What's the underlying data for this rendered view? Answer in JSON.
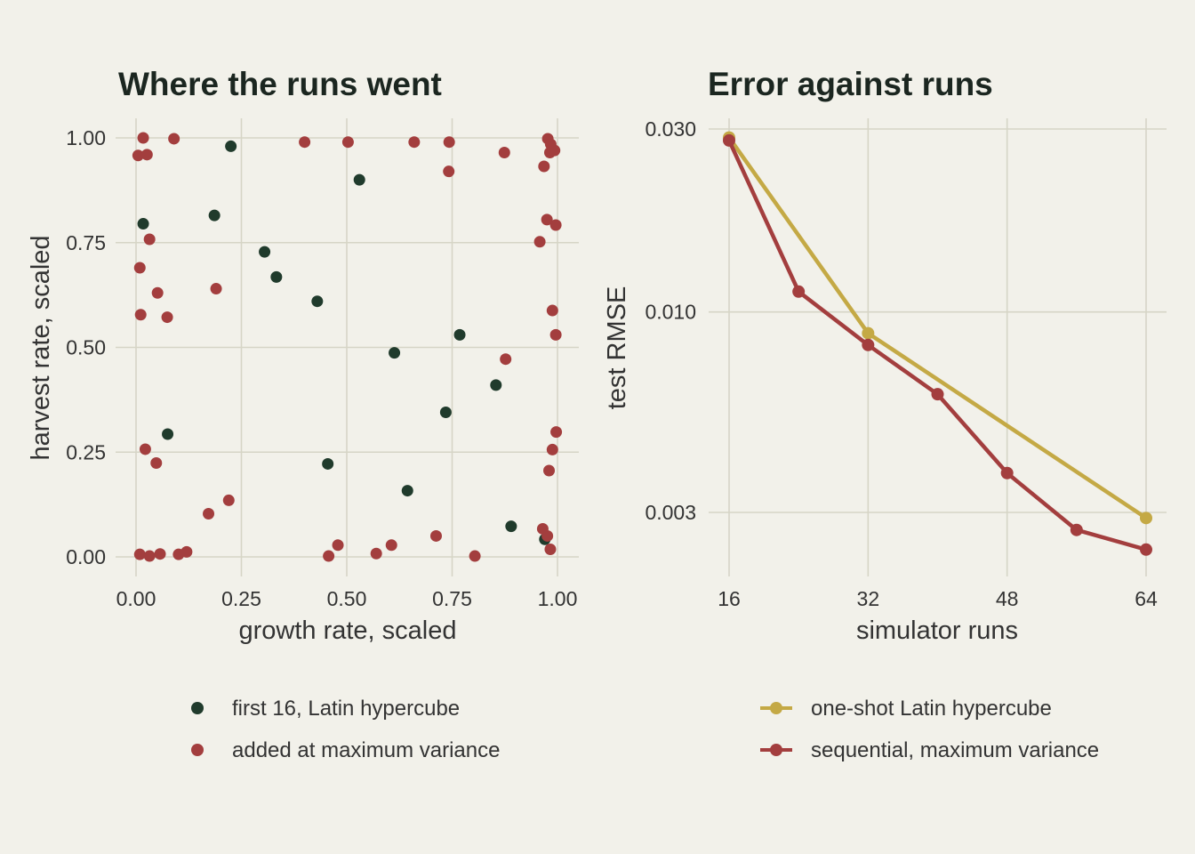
{
  "colors": {
    "background": "#f2f1ea",
    "grid": "#d6d5c6",
    "dark_green": "#203b2c",
    "red": "#a33e3e",
    "gold": "#c4a945"
  },
  "chart_data": [
    {
      "type": "scatter",
      "title": "Where the runs went",
      "xlabel": "growth rate, scaled",
      "ylabel": "harvest rate, scaled",
      "xlim": [
        0,
        1
      ],
      "ylim": [
        0,
        1
      ],
      "xticks": [
        "0.00",
        "0.25",
        "0.50",
        "0.75",
        "1.00"
      ],
      "yticks": [
        "0.00",
        "0.25",
        "0.50",
        "0.75",
        "1.00"
      ],
      "grid": true,
      "legend_position": "bottom",
      "series": [
        {
          "name": "first 16, Latin hypercube",
          "color": "#203b2c",
          "points": [
            [
              0.225,
              0.98
            ],
            [
              0.53,
              0.9
            ],
            [
              0.017,
              0.795
            ],
            [
              0.186,
              0.815
            ],
            [
              0.305,
              0.728
            ],
            [
              0.333,
              0.668
            ],
            [
              0.43,
              0.61
            ],
            [
              0.768,
              0.53
            ],
            [
              0.613,
              0.487
            ],
            [
              0.854,
              0.41
            ],
            [
              0.735,
              0.345
            ],
            [
              0.075,
              0.293
            ],
            [
              0.455,
              0.222
            ],
            [
              0.644,
              0.158
            ],
            [
              0.89,
              0.073
            ],
            [
              0.97,
              0.042
            ]
          ]
        },
        {
          "name": "added at maximum variance",
          "color": "#a33e3e",
          "points": [
            [
              0.017,
              1.0
            ],
            [
              0.09,
              0.998
            ],
            [
              0.4,
              0.99
            ],
            [
              0.503,
              0.99
            ],
            [
              0.66,
              0.99
            ],
            [
              0.743,
              0.99
            ],
            [
              0.977,
              0.998
            ],
            [
              0.984,
              0.985
            ],
            [
              0.005,
              0.958
            ],
            [
              0.026,
              0.96
            ],
            [
              0.742,
              0.92
            ],
            [
              0.874,
              0.965
            ],
            [
              0.968,
              0.932
            ],
            [
              0.982,
              0.965
            ],
            [
              0.993,
              0.97
            ],
            [
              0.975,
              0.805
            ],
            [
              0.996,
              0.792
            ],
            [
              0.032,
              0.758
            ],
            [
              0.958,
              0.752
            ],
            [
              0.009,
              0.69
            ],
            [
              0.051,
              0.63
            ],
            [
              0.19,
              0.64
            ],
            [
              0.011,
              0.578
            ],
            [
              0.074,
              0.572
            ],
            [
              0.988,
              0.588
            ],
            [
              0.996,
              0.53
            ],
            [
              0.877,
              0.472
            ],
            [
              0.022,
              0.257
            ],
            [
              0.048,
              0.224
            ],
            [
              0.997,
              0.298
            ],
            [
              0.988,
              0.256
            ],
            [
              0.98,
              0.206
            ],
            [
              0.22,
              0.135
            ],
            [
              0.172,
              0.103
            ],
            [
              0.965,
              0.067
            ],
            [
              0.976,
              0.05
            ],
            [
              0.983,
              0.018
            ],
            [
              0.712,
              0.05
            ],
            [
              0.479,
              0.028
            ],
            [
              0.606,
              0.028
            ],
            [
              0.009,
              0.006
            ],
            [
              0.032,
              0.002
            ],
            [
              0.057,
              0.007
            ],
            [
              0.101,
              0.006
            ],
            [
              0.12,
              0.012
            ],
            [
              0.457,
              0.002
            ],
            [
              0.57,
              0.008
            ],
            [
              0.804,
              0.002
            ]
          ]
        }
      ]
    },
    {
      "type": "line",
      "title": "Error against runs",
      "xlabel": "simulator runs",
      "ylabel": "test RMSE",
      "xlim": [
        15,
        65
      ],
      "y_scale": "log",
      "ylim": [
        0.0019,
        0.031
      ],
      "xticks": [
        16,
        32,
        48,
        64
      ],
      "yticks": [
        0.003,
        0.01,
        0.03
      ],
      "ytick_labels": [
        "0.003",
        "0.010",
        "0.030"
      ],
      "grid": true,
      "legend_position": "bottom",
      "series": [
        {
          "name": "one-shot Latin hypercube",
          "color": "#c4a945",
          "x": [
            16,
            32,
            64
          ],
          "y": [
            0.0285,
            0.0088,
            0.0029
          ]
        },
        {
          "name": "sequential, maximum variance",
          "color": "#a33e3e",
          "x": [
            16,
            24,
            32,
            40,
            48,
            56,
            64
          ],
          "y": [
            0.028,
            0.0113,
            0.0082,
            0.0061,
            0.0038,
            0.0027,
            0.0024
          ]
        }
      ]
    }
  ]
}
